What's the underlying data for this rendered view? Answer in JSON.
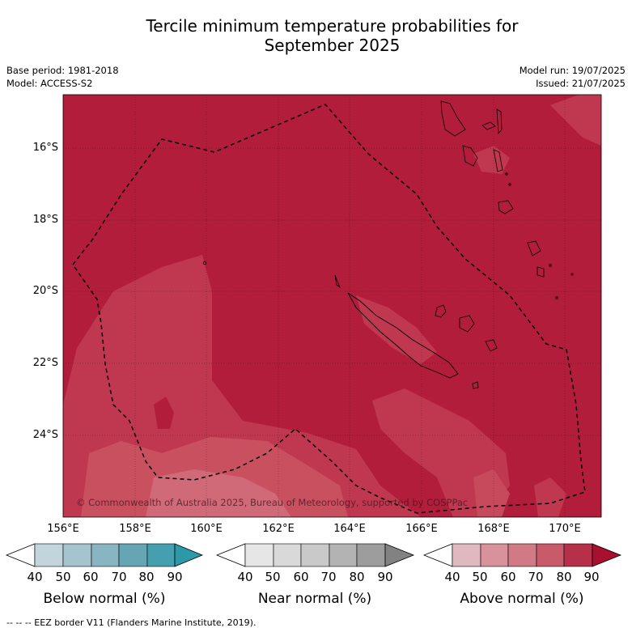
{
  "header": {
    "title_line1": "Tercile minimum temperature probabilities for",
    "title_line2": "September 2025",
    "base_period": "Base period: 1981-2018",
    "model": "Model: ACCESS-S2",
    "model_run": "Model run: 19/07/2025",
    "issued": "Issued: 21/07/2025"
  },
  "map": {
    "y_ticks": [
      "16°S",
      "18°S",
      "20°S",
      "22°S",
      "24°S"
    ],
    "x_ticks": [
      "156°E",
      "158°E",
      "160°E",
      "162°E",
      "164°E",
      "166°E",
      "168°E",
      "170°E"
    ],
    "copyright": "© Commonwealth of Australia 2025, Bureau of Meteorology, supported by COSPPac",
    "background_color": "#b01e3a",
    "features": [
      "new-caledonia",
      "vanuatu",
      "loyalty-islands",
      "eez-border"
    ]
  },
  "legend": {
    "tick_labels": [
      "40",
      "50",
      "60",
      "70",
      "80",
      "90"
    ],
    "below": {
      "title": "Below normal (%)",
      "colors": [
        "#ffffff",
        "#c3d5dc",
        "#a6c4cd",
        "#87b5c2",
        "#66a6b4",
        "#44a0ae",
        "#2c98a8"
      ]
    },
    "near": {
      "title": "Near normal (%)",
      "colors": [
        "#ffffff",
        "#e6e6e6",
        "#d9d9d9",
        "#c9c9c9",
        "#b3b3b3",
        "#9d9d9d",
        "#828282"
      ]
    },
    "above": {
      "title": "Above normal (%)",
      "colors": [
        "#ffffff",
        "#e0b8c0",
        "#d8929c",
        "#cf7a84",
        "#c85a6a",
        "#b53048",
        "#a8102e"
      ]
    }
  },
  "footer": {
    "eez_note": "--  --  -- EEZ border V11 (Flanders Marine Institute, 2019)."
  }
}
